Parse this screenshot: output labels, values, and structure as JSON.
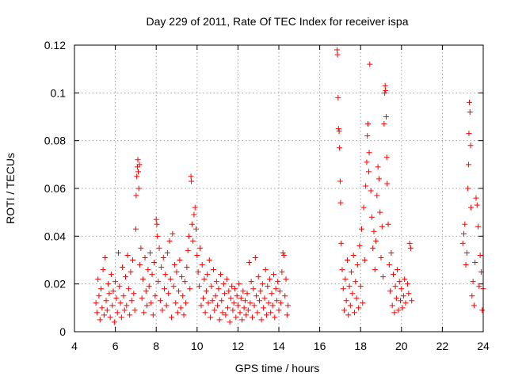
{
  "chart_data": {
    "type": "scatter",
    "title": "Day 229 of 2011, Rate Of TEC Index for receiver ispa",
    "xlabel": "GPS time / hours",
    "ylabel": "ROTI / TECUs",
    "xlim": [
      4,
      24
    ],
    "ylim": [
      0,
      0.12
    ],
    "xticks": [
      "4",
      "6",
      "8",
      "10",
      "12",
      "14",
      "16",
      "18",
      "20",
      "22",
      "24"
    ],
    "yticks": [
      "0",
      "0.02",
      "0.04",
      "0.06",
      "0.08",
      "0.1",
      "0.12"
    ],
    "grid": true,
    "marker": "+",
    "color": "#ff0000",
    "series": [
      {
        "values": [
          [
            5.05,
            0.012
          ],
          [
            5.1,
            0.008
          ],
          [
            5.15,
            0.022
          ],
          [
            5.2,
            0.015
          ],
          [
            5.25,
            0.005
          ],
          [
            5.3,
            0.018
          ],
          [
            5.35,
            0.01
          ],
          [
            5.4,
            0.026
          ],
          [
            5.45,
            0.007
          ],
          [
            5.5,
            0.031
          ],
          [
            5.55,
            0.013
          ],
          [
            5.6,
            0.009
          ],
          [
            5.65,
            0.02
          ],
          [
            5.7,
            0.016
          ],
          [
            5.75,
            0.006
          ],
          [
            5.8,
            0.024
          ],
          [
            5.85,
            0.011
          ],
          [
            5.9,
            0.017
          ],
          [
            5.95,
            0.004
          ],
          [
            6.0,
            0.021
          ],
          [
            6.05,
            0.014
          ],
          [
            6.1,
            0.008
          ],
          [
            6.15,
            0.033
          ],
          [
            6.2,
            0.019
          ],
          [
            6.25,
            0.012
          ],
          [
            6.3,
            0.006
          ],
          [
            6.35,
            0.027
          ],
          [
            6.4,
            0.015
          ],
          [
            6.45,
            0.009
          ],
          [
            6.5,
            0.023
          ],
          [
            6.55,
            0.011
          ],
          [
            6.6,
            0.032
          ],
          [
            6.65,
            0.018
          ],
          [
            6.7,
            0.007
          ],
          [
            6.75,
            0.025
          ],
          [
            6.8,
            0.013
          ],
          [
            6.85,
            0.03
          ],
          [
            6.9,
            0.016
          ],
          [
            6.95,
            0.009
          ],
          [
            7.0,
            0.043
          ],
          [
            7.02,
            0.057
          ],
          [
            7.05,
            0.065
          ],
          [
            7.08,
            0.069
          ],
          [
            7.1,
            0.072
          ],
          [
            7.12,
            0.067
          ],
          [
            7.15,
            0.06
          ],
          [
            7.18,
            0.07
          ],
          [
            7.2,
            0.028
          ],
          [
            7.25,
            0.035
          ],
          [
            7.3,
            0.014
          ],
          [
            7.35,
            0.022
          ],
          [
            7.4,
            0.008
          ],
          [
            7.45,
            0.031
          ],
          [
            7.5,
            0.017
          ],
          [
            7.55,
            0.011
          ],
          [
            7.6,
            0.026
          ],
          [
            7.65,
            0.019
          ],
          [
            7.7,
            0.033
          ],
          [
            7.75,
            0.012
          ],
          [
            7.8,
            0.024
          ],
          [
            7.85,
            0.007
          ],
          [
            7.9,
            0.029
          ],
          [
            7.95,
            0.015
          ],
          [
            8.0,
            0.047
          ],
          [
            8.03,
            0.045
          ],
          [
            8.06,
            0.04
          ],
          [
            8.1,
            0.021
          ],
          [
            8.15,
            0.035
          ],
          [
            8.2,
            0.013
          ],
          [
            8.25,
            0.027
          ],
          [
            8.3,
            0.009
          ],
          [
            8.35,
            0.031
          ],
          [
            8.4,
            0.018
          ],
          [
            8.45,
            0.024
          ],
          [
            8.5,
            0.011
          ],
          [
            8.55,
            0.033
          ],
          [
            8.6,
            0.016
          ],
          [
            8.65,
            0.038
          ],
          [
            8.7,
            0.022
          ],
          [
            8.75,
            0.006
          ],
          [
            8.8,
            0.041
          ],
          [
            8.85,
            0.019
          ],
          [
            8.9,
            0.028
          ],
          [
            8.95,
            0.012
          ],
          [
            9.0,
            0.025
          ],
          [
            9.05,
            0.008
          ],
          [
            9.1,
            0.017
          ],
          [
            9.15,
            0.03
          ],
          [
            9.2,
            0.01
          ],
          [
            9.25,
            0.023
          ],
          [
            9.3,
            0.015
          ],
          [
            9.35,
            0.007
          ],
          [
            9.4,
            0.021
          ],
          [
            9.45,
            0.012
          ],
          [
            9.5,
            0.027
          ],
          [
            9.55,
            0.034
          ],
          [
            9.6,
            0.04
          ],
          [
            9.65,
            0.018
          ],
          [
            9.7,
            0.065
          ],
          [
            9.72,
            0.063
          ],
          [
            9.75,
            0.045
          ],
          [
            9.8,
            0.038
          ],
          [
            9.85,
            0.049
          ],
          [
            9.9,
            0.052
          ],
          [
            9.95,
            0.043
          ],
          [
            10.0,
            0.032
          ],
          [
            10.05,
            0.025
          ],
          [
            10.1,
            0.019
          ],
          [
            10.15,
            0.035
          ],
          [
            10.2,
            0.011
          ],
          [
            10.25,
            0.028
          ],
          [
            10.3,
            0.014
          ],
          [
            10.35,
            0.022
          ],
          [
            10.4,
            0.008
          ],
          [
            10.45,
            0.017
          ],
          [
            10.5,
            0.024
          ],
          [
            10.55,
            0.012
          ],
          [
            10.6,
            0.03
          ],
          [
            10.65,
            0.006
          ],
          [
            10.7,
            0.019
          ],
          [
            10.75,
            0.013
          ],
          [
            10.8,
            0.026
          ],
          [
            10.85,
            0.009
          ],
          [
            10.9,
            0.015
          ],
          [
            10.95,
            0.021
          ],
          [
            11.0,
            0.011
          ],
          [
            11.05,
            0.018
          ],
          [
            11.1,
            0.005
          ],
          [
            11.15,
            0.024
          ],
          [
            11.2,
            0.013
          ],
          [
            11.25,
            0.008
          ],
          [
            11.3,
            0.02
          ],
          [
            11.35,
            0.016
          ],
          [
            11.4,
            0.007
          ],
          [
            11.45,
            0.022
          ],
          [
            11.5,
            0.01
          ],
          [
            11.55,
            0.017
          ],
          [
            11.6,
            0.004
          ],
          [
            11.65,
            0.014
          ],
          [
            11.7,
            0.019
          ],
          [
            11.75,
            0.009
          ],
          [
            11.8,
            0.012
          ],
          [
            11.85,
            0.018
          ],
          [
            11.9,
            0.006
          ],
          [
            11.95,
            0.015
          ],
          [
            12.0,
            0.011
          ],
          [
            12.05,
            0.02
          ],
          [
            12.1,
            0.008
          ],
          [
            12.15,
            0.014
          ],
          [
            12.2,
            0.005
          ],
          [
            12.25,
            0.017
          ],
          [
            12.3,
            0.01
          ],
          [
            12.35,
            0.013
          ],
          [
            12.4,
            0.007
          ],
          [
            12.45,
            0.016
          ],
          [
            12.5,
            0.009
          ],
          [
            12.55,
            0.029
          ],
          [
            12.6,
            0.012
          ],
          [
            12.65,
            0.021
          ],
          [
            12.7,
            0.006
          ],
          [
            12.75,
            0.018
          ],
          [
            12.8,
            0.011
          ],
          [
            12.85,
            0.031
          ],
          [
            12.9,
            0.015
          ],
          [
            12.95,
            0.008
          ],
          [
            13.0,
            0.023
          ],
          [
            13.05,
            0.013
          ],
          [
            13.1,
            0.017
          ],
          [
            13.15,
            0.005
          ],
          [
            13.2,
            0.02
          ],
          [
            13.25,
            0.01
          ],
          [
            13.3,
            0.014
          ],
          [
            13.35,
            0.026
          ],
          [
            13.4,
            0.007
          ],
          [
            13.45,
            0.019
          ],
          [
            13.5,
            0.012
          ],
          [
            13.55,
            0.022
          ],
          [
            13.6,
            0.008
          ],
          [
            13.65,
            0.016
          ],
          [
            13.7,
            0.011
          ],
          [
            13.75,
            0.024
          ],
          [
            13.8,
            0.006
          ],
          [
            13.85,
            0.018
          ],
          [
            13.9,
            0.013
          ],
          [
            13.95,
            0.021
          ],
          [
            14.0,
            0.009
          ],
          [
            14.05,
            0.017
          ],
          [
            14.1,
            0.012
          ],
          [
            14.15,
            0.025
          ],
          [
            14.2,
            0.033
          ],
          [
            14.25,
            0.032
          ],
          [
            14.3,
            0.015
          ],
          [
            14.35,
            0.022
          ],
          [
            14.4,
            0.007
          ],
          [
            14.45,
            0.011
          ],
          [
            16.85,
            0.118
          ],
          [
            16.87,
            0.116
          ],
          [
            16.9,
            0.098
          ],
          [
            16.92,
            0.085
          ],
          [
            16.95,
            0.084
          ],
          [
            16.97,
            0.077
          ],
          [
            17.0,
            0.063
          ],
          [
            17.02,
            0.054
          ],
          [
            17.05,
            0.037
          ],
          [
            17.1,
            0.026
          ],
          [
            17.15,
            0.018
          ],
          [
            17.2,
            0.009
          ],
          [
            17.25,
            0.022
          ],
          [
            17.3,
            0.013
          ],
          [
            17.35,
            0.03
          ],
          [
            17.4,
            0.007
          ],
          [
            17.45,
            0.019
          ],
          [
            17.5,
            0.011
          ],
          [
            17.55,
            0.025
          ],
          [
            17.6,
            0.016
          ],
          [
            17.65,
            0.032
          ],
          [
            17.7,
            0.008
          ],
          [
            17.75,
            0.021
          ],
          [
            17.8,
            0.014
          ],
          [
            17.85,
            0.028
          ],
          [
            17.9,
            0.01
          ],
          [
            17.95,
            0.036
          ],
          [
            18.0,
            0.019
          ],
          [
            18.05,
            0.043
          ],
          [
            18.1,
            0.012
          ],
          [
            18.15,
            0.052
          ],
          [
            18.2,
            0.03
          ],
          [
            18.25,
            0.061
          ],
          [
            18.3,
            0.071
          ],
          [
            18.33,
            0.082
          ],
          [
            18.36,
            0.087
          ],
          [
            18.4,
            0.067
          ],
          [
            18.42,
            0.075
          ],
          [
            18.45,
            0.112
          ],
          [
            18.5,
            0.059
          ],
          [
            18.55,
            0.048
          ],
          [
            18.6,
            0.035
          ],
          [
            18.65,
            0.042
          ],
          [
            18.7,
            0.026
          ],
          [
            18.75,
            0.038
          ],
          [
            18.8,
            0.057
          ],
          [
            18.85,
            0.069
          ],
          [
            18.9,
            0.064
          ],
          [
            18.95,
            0.05
          ],
          [
            19.0,
            0.031
          ],
          [
            19.05,
            0.044
          ],
          [
            19.1,
            0.023
          ],
          [
            19.15,
            0.087
          ],
          [
            19.18,
            0.1
          ],
          [
            19.2,
            0.103
          ],
          [
            19.22,
            0.101
          ],
          [
            19.25,
            0.09
          ],
          [
            19.28,
            0.073
          ],
          [
            19.3,
            0.062
          ],
          [
            19.35,
            0.045
          ],
          [
            19.4,
            0.028
          ],
          [
            19.45,
            0.017
          ],
          [
            19.5,
            0.033
          ],
          [
            19.55,
            0.011
          ],
          [
            19.6,
            0.024
          ],
          [
            19.65,
            0.008
          ],
          [
            19.7,
            0.019
          ],
          [
            19.75,
            0.014
          ],
          [
            19.8,
            0.026
          ],
          [
            19.85,
            0.009
          ],
          [
            19.9,
            0.021
          ],
          [
            19.95,
            0.013
          ],
          [
            20.0,
            0.018
          ],
          [
            20.05,
            0.01
          ],
          [
            20.1,
            0.015
          ],
          [
            20.15,
            0.022
          ],
          [
            20.2,
            0.012
          ],
          [
            20.3,
            0.02
          ],
          [
            20.35,
            0.016
          ],
          [
            20.4,
            0.037
          ],
          [
            20.45,
            0.035
          ],
          [
            20.5,
            0.013
          ],
          [
            23.0,
            0.037
          ],
          [
            23.05,
            0.041
          ],
          [
            23.1,
            0.045
          ],
          [
            23.15,
            0.028
          ],
          [
            23.2,
            0.033
          ],
          [
            23.25,
            0.06
          ],
          [
            23.28,
            0.07
          ],
          [
            23.3,
            0.083
          ],
          [
            23.32,
            0.096
          ],
          [
            23.35,
            0.092
          ],
          [
            23.38,
            0.078
          ],
          [
            23.4,
            0.052
          ],
          [
            23.45,
            0.015
          ],
          [
            23.5,
            0.021
          ],
          [
            23.55,
            0.011
          ],
          [
            23.6,
            0.029
          ],
          [
            23.65,
            0.056
          ],
          [
            23.7,
            0.053
          ],
          [
            23.75,
            0.044
          ],
          [
            23.8,
            0.019
          ],
          [
            23.85,
            0.032
          ],
          [
            23.9,
            0.025
          ],
          [
            23.95,
            0.009
          ],
          [
            24.0,
            0.018
          ]
        ]
      }
    ]
  }
}
